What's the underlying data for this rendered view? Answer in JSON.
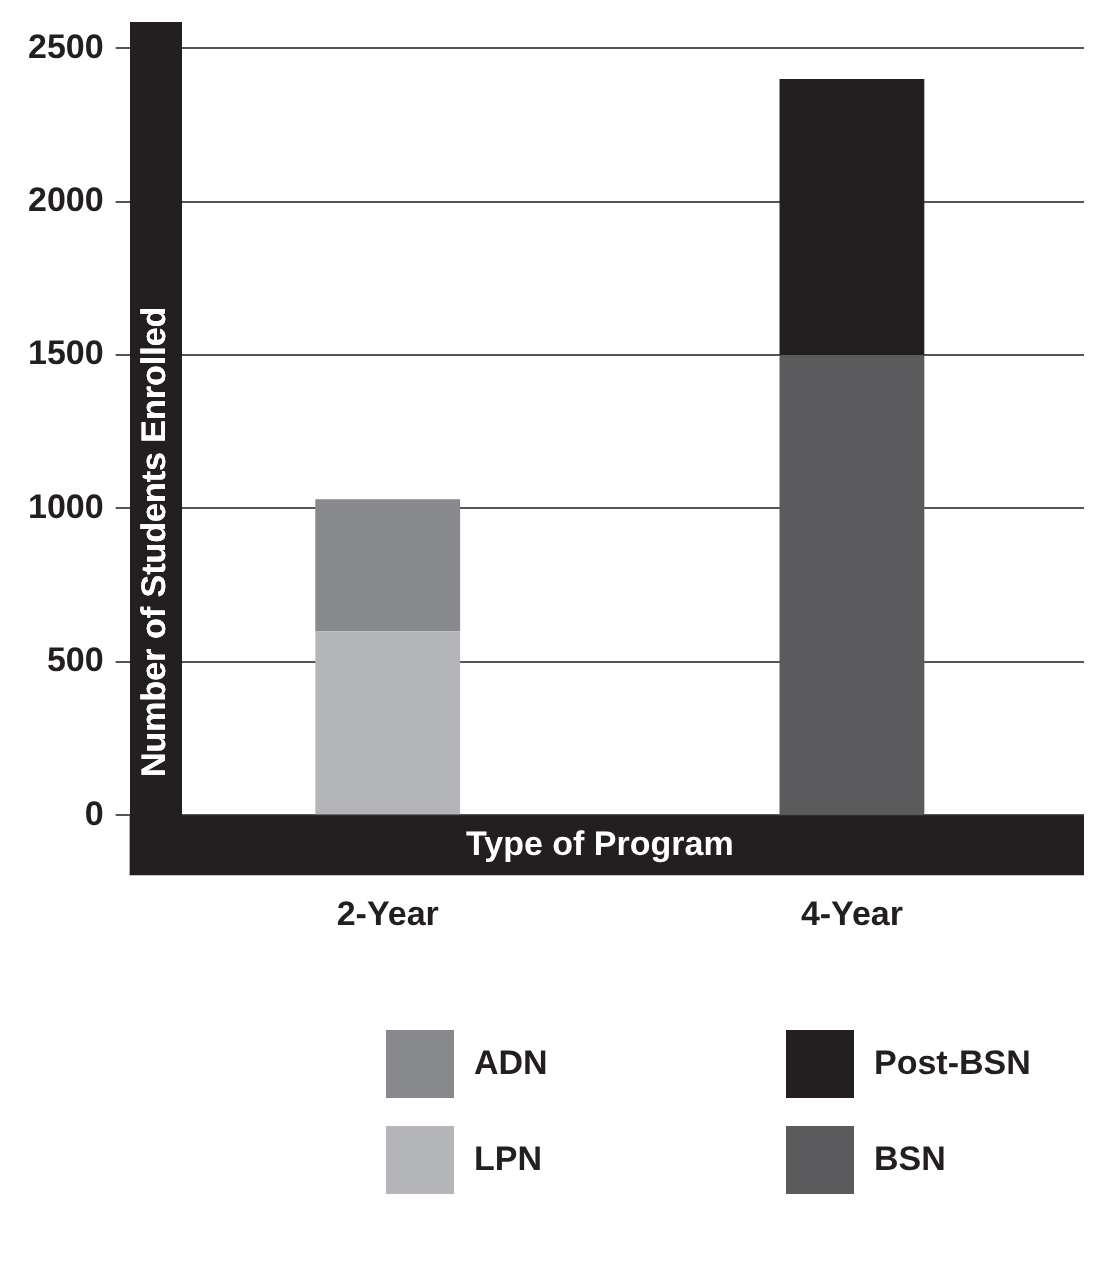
{
  "chart_data": {
    "type": "bar",
    "stacked": true,
    "xlabel": "Type of Program",
    "ylabel": "Number of Students Enrolled",
    "categories": [
      "2-Year",
      "4-Year"
    ],
    "series": [
      {
        "name": "LPN",
        "color": "#b4b5b8",
        "values": [
          600,
          null
        ]
      },
      {
        "name": "ADN",
        "color": "#88898c",
        "values": [
          430,
          null
        ]
      },
      {
        "name": "BSN",
        "color": "#5b5b5d",
        "values": [
          null,
          1500
        ]
      },
      {
        "name": "Post-BSN",
        "color": "#231f20",
        "values": [
          null,
          900
        ]
      }
    ],
    "ylim": [
      0,
      2500
    ],
    "yticks": [
      0,
      500,
      1000,
      1500,
      2000,
      2500
    ],
    "grid": "y",
    "legend": "bottom"
  }
}
